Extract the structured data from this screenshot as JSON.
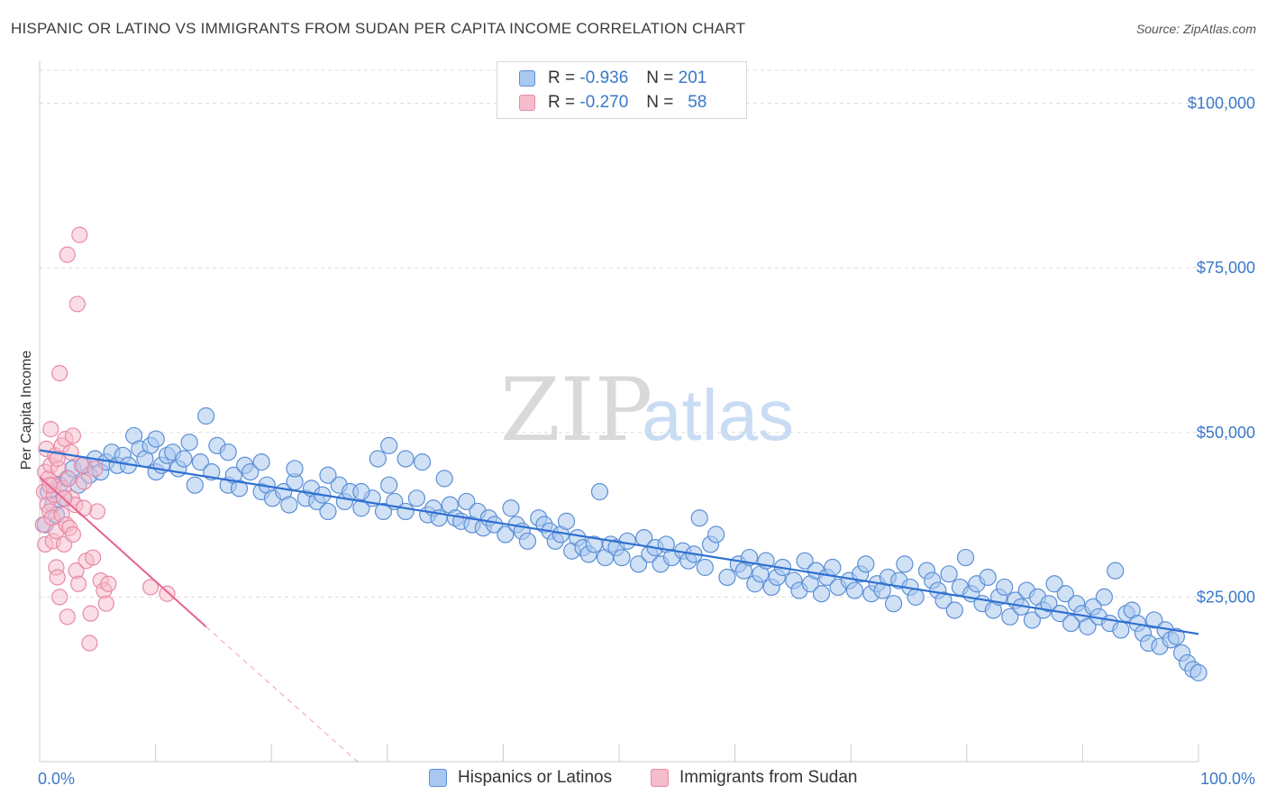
{
  "title": "HISPANIC OR LATINO VS IMMIGRANTS FROM SUDAN PER CAPITA INCOME CORRELATION CHART",
  "source": "Source: ZipAtlas.com",
  "watermark": {
    "zip": "ZIP",
    "atlas": "atlas"
  },
  "legend_top": [
    {
      "r_label": "R =",
      "r_value": "-0.936",
      "n_label": "N =",
      "n_value": "201"
    },
    {
      "r_label": "R =",
      "r_value": "-0.270",
      "n_label": "N =",
      "n_value": "58"
    }
  ],
  "colors": {
    "blue_fill": "#a9c8ef",
    "blue_stroke": "#5b8fd6",
    "blue_line": "#2e6fd0",
    "pink_fill": "#f5bccb",
    "pink_stroke": "#e88aa6",
    "pink_line": "#e8628d",
    "grid": "#dddddd",
    "tick_text": "#3b78c9"
  },
  "chart_data": {
    "type": "scatter",
    "title": "HISPANIC OR LATINO VS IMMIGRANTS FROM SUDAN PER CAPITA INCOME CORRELATION CHART",
    "xlabel": "",
    "ylabel": "Per Capita Income",
    "xlim": [
      0,
      100
    ],
    "ylim": [
      0,
      105000
    ],
    "x_tick_labels": [
      "0.0%",
      "100.0%"
    ],
    "y_ticks": [
      25000,
      50000,
      75000,
      100000
    ],
    "y_tick_labels": [
      "$25,000",
      "$50,000",
      "$75,000",
      "$100,000"
    ],
    "grid": true,
    "legend_position": "bottom",
    "series": [
      {
        "name": "Hispanics or Latinos",
        "r": -0.936,
        "n": 201,
        "trend": {
          "x": [
            0,
            100
          ],
          "y": [
            47300,
            19400
          ]
        },
        "points": [
          [
            0.5,
            36000
          ],
          [
            0.8,
            41000
          ],
          [
            1.2,
            39000
          ],
          [
            1.5,
            37500
          ],
          [
            1.8,
            42000
          ],
          [
            2.2,
            40000
          ],
          [
            2.5,
            43000
          ],
          [
            3.0,
            44500
          ],
          [
            3.5,
            42000
          ],
          [
            4.0,
            45000
          ],
          [
            4.5,
            43500
          ],
          [
            5.0,
            46000
          ],
          [
            5.5,
            44000
          ],
          [
            6.0,
            45500
          ],
          [
            6.5,
            47000
          ],
          [
            7.0,
            45000
          ],
          [
            7.5,
            46500
          ],
          [
            8.0,
            45000
          ],
          [
            8.5,
            49500
          ],
          [
            9.0,
            47500
          ],
          [
            9.5,
            46000
          ],
          [
            10.0,
            48000
          ],
          [
            10.5,
            44000
          ],
          [
            11.0,
            45000
          ],
          [
            11.5,
            46500
          ],
          [
            12.0,
            47000
          ],
          [
            12.5,
            44500
          ],
          [
            13.0,
            46000
          ],
          [
            14.0,
            42000
          ],
          [
            14.5,
            45500
          ],
          [
            15.0,
            52500
          ],
          [
            15.5,
            44000
          ],
          [
            16.0,
            48000
          ],
          [
            17.0,
            42000
          ],
          [
            17.5,
            43500
          ],
          [
            18.0,
            41500
          ],
          [
            18.5,
            45000
          ],
          [
            19.0,
            44000
          ],
          [
            20.0,
            41000
          ],
          [
            20.5,
            42000
          ],
          [
            21.0,
            40000
          ],
          [
            22.0,
            41000
          ],
          [
            22.5,
            39000
          ],
          [
            23.0,
            42500
          ],
          [
            24.0,
            40000
          ],
          [
            24.5,
            41500
          ],
          [
            25.0,
            39500
          ],
          [
            25.5,
            40500
          ],
          [
            26.0,
            38000
          ],
          [
            27.0,
            42000
          ],
          [
            27.5,
            39500
          ],
          [
            28.0,
            41000
          ],
          [
            29.0,
            38500
          ],
          [
            30.0,
            40000
          ],
          [
            30.5,
            46000
          ],
          [
            31.0,
            38000
          ],
          [
            31.5,
            42000
          ],
          [
            32.0,
            39500
          ],
          [
            33.0,
            38000
          ],
          [
            34.0,
            40000
          ],
          [
            35.0,
            37500
          ],
          [
            35.5,
            38500
          ],
          [
            36.0,
            37000
          ],
          [
            37.0,
            39000
          ],
          [
            37.5,
            37000
          ],
          [
            38.0,
            36500
          ],
          [
            38.5,
            39500
          ],
          [
            39.0,
            36000
          ],
          [
            39.5,
            38000
          ],
          [
            40.0,
            35500
          ],
          [
            40.5,
            37000
          ],
          [
            41.0,
            36000
          ],
          [
            42.0,
            34500
          ],
          [
            42.5,
            38500
          ],
          [
            43.0,
            36000
          ],
          [
            43.5,
            35000
          ],
          [
            44.0,
            33500
          ],
          [
            45.0,
            37000
          ],
          [
            45.5,
            36000
          ],
          [
            46.0,
            35000
          ],
          [
            46.5,
            33500
          ],
          [
            47.0,
            34500
          ],
          [
            47.5,
            36500
          ],
          [
            48.0,
            32000
          ],
          [
            48.5,
            34000
          ],
          [
            49.0,
            32500
          ],
          [
            49.5,
            31500
          ],
          [
            50.0,
            33000
          ],
          [
            50.5,
            41000
          ],
          [
            51.0,
            31000
          ],
          [
            51.5,
            33000
          ],
          [
            52.0,
            32500
          ],
          [
            52.5,
            31000
          ],
          [
            53.0,
            33500
          ],
          [
            54.0,
            30000
          ],
          [
            54.5,
            34000
          ],
          [
            55.0,
            31500
          ],
          [
            55.5,
            32500
          ],
          [
            56.0,
            30000
          ],
          [
            56.5,
            33000
          ],
          [
            57.0,
            31000
          ],
          [
            58.0,
            32000
          ],
          [
            58.5,
            30500
          ],
          [
            59.0,
            31500
          ],
          [
            59.5,
            37000
          ],
          [
            60.0,
            29500
          ],
          [
            60.5,
            33000
          ],
          [
            61.0,
            34500
          ],
          [
            62.0,
            28000
          ],
          [
            63.0,
            30000
          ],
          [
            63.5,
            29000
          ],
          [
            64.0,
            31000
          ],
          [
            64.5,
            27000
          ],
          [
            65.0,
            28500
          ],
          [
            65.5,
            30500
          ],
          [
            66.0,
            26500
          ],
          [
            66.5,
            28000
          ],
          [
            67.0,
            29500
          ],
          [
            68.0,
            27500
          ],
          [
            68.5,
            26000
          ],
          [
            69.0,
            30500
          ],
          [
            69.5,
            27000
          ],
          [
            70.0,
            29000
          ],
          [
            70.5,
            25500
          ],
          [
            71.0,
            28000
          ],
          [
            71.5,
            29500
          ],
          [
            72.0,
            26500
          ],
          [
            73.0,
            27500
          ],
          [
            73.5,
            26000
          ],
          [
            74.0,
            28500
          ],
          [
            74.5,
            30000
          ],
          [
            75.0,
            25500
          ],
          [
            75.5,
            27000
          ],
          [
            76.0,
            26000
          ],
          [
            76.5,
            28000
          ],
          [
            77.0,
            24000
          ],
          [
            77.5,
            27500
          ],
          [
            78.0,
            30000
          ],
          [
            78.5,
            26500
          ],
          [
            79.0,
            25000
          ],
          [
            80.0,
            29000
          ],
          [
            80.5,
            27500
          ],
          [
            81.0,
            26000
          ],
          [
            81.5,
            24500
          ],
          [
            82.0,
            28500
          ],
          [
            82.5,
            23000
          ],
          [
            83.0,
            26500
          ],
          [
            83.5,
            31000
          ],
          [
            84.0,
            25500
          ],
          [
            84.5,
            27000
          ],
          [
            85.0,
            24000
          ],
          [
            85.5,
            28000
          ],
          [
            86.0,
            23000
          ],
          [
            86.5,
            25000
          ],
          [
            87.0,
            26500
          ],
          [
            87.5,
            22000
          ],
          [
            88.0,
            24500
          ],
          [
            88.5,
            23500
          ],
          [
            89.0,
            26000
          ],
          [
            89.5,
            21500
          ],
          [
            90.0,
            25000
          ],
          [
            90.5,
            23000
          ],
          [
            91.0,
            24000
          ],
          [
            91.5,
            27000
          ],
          [
            92.0,
            22500
          ],
          [
            92.5,
            25500
          ],
          [
            93.0,
            21000
          ],
          [
            93.5,
            24000
          ],
          [
            94.0,
            22500
          ],
          [
            94.5,
            20500
          ],
          [
            95.0,
            23500
          ],
          [
            95.5,
            22000
          ],
          [
            96.0,
            25000
          ],
          [
            96.5,
            21000
          ],
          [
            97.0,
            29000
          ],
          [
            97.5,
            20000
          ],
          [
            98.0,
            22500
          ],
          [
            98.5,
            23000
          ],
          [
            99.0,
            21000
          ],
          [
            99.5,
            19500
          ],
          [
            100.0,
            18000
          ],
          [
            100.5,
            21500
          ],
          [
            101.0,
            17500
          ],
          [
            101.5,
            20000
          ],
          [
            102.0,
            18500
          ],
          [
            102.5,
            19000
          ],
          [
            103.0,
            16500
          ],
          [
            103.5,
            15000
          ],
          [
            104.0,
            14000
          ],
          [
            104.5,
            13500
          ],
          [
            20.0,
            45500
          ],
          [
            23.0,
            44500
          ],
          [
            29.0,
            41000
          ],
          [
            31.5,
            48000
          ],
          [
            33.0,
            46000
          ],
          [
            34.5,
            45500
          ],
          [
            36.5,
            43000
          ],
          [
            26.0,
            43500
          ],
          [
            17.0,
            47000
          ],
          [
            13.5,
            48500
          ],
          [
            10.5,
            49000
          ]
        ]
      },
      {
        "name": "Immigrants from Sudan",
        "r": -0.27,
        "n": 58,
        "trend": {
          "x": [
            0,
            15
          ],
          "y": [
            43200,
            20500
          ]
        },
        "trend_extension": {
          "x": [
            15,
            30
          ],
          "y": [
            20500,
            -2000
          ]
        },
        "points": [
          [
            0.3,
            36000
          ],
          [
            0.4,
            41000
          ],
          [
            0.5,
            44000
          ],
          [
            0.5,
            33000
          ],
          [
            0.6,
            47500
          ],
          [
            0.7,
            39000
          ],
          [
            0.8,
            43000
          ],
          [
            0.9,
            38000
          ],
          [
            1.0,
            45000
          ],
          [
            1.0,
            50500
          ],
          [
            1.1,
            37000
          ],
          [
            1.2,
            42000
          ],
          [
            1.2,
            33500
          ],
          [
            1.3,
            40500
          ],
          [
            1.4,
            46500
          ],
          [
            1.5,
            29500
          ],
          [
            1.5,
            35000
          ],
          [
            1.6,
            28000
          ],
          [
            1.7,
            44500
          ],
          [
            1.8,
            25000
          ],
          [
            1.8,
            59000
          ],
          [
            2.0,
            37500
          ],
          [
            2.0,
            48000
          ],
          [
            2.1,
            41500
          ],
          [
            2.2,
            33000
          ],
          [
            2.3,
            49000
          ],
          [
            2.4,
            36000
          ],
          [
            2.5,
            22000
          ],
          [
            2.5,
            77000
          ],
          [
            2.6,
            43000
          ],
          [
            2.7,
            35500
          ],
          [
            2.8,
            47000
          ],
          [
            2.9,
            40000
          ],
          [
            3.0,
            49500
          ],
          [
            3.0,
            34500
          ],
          [
            3.2,
            39000
          ],
          [
            3.3,
            29000
          ],
          [
            3.4,
            69500
          ],
          [
            3.5,
            27000
          ],
          [
            3.6,
            80000
          ],
          [
            3.8,
            45000
          ],
          [
            4.0,
            42500
          ],
          [
            4.2,
            30500
          ],
          [
            4.5,
            18000
          ],
          [
            4.6,
            22500
          ],
          [
            4.8,
            31000
          ],
          [
            5.0,
            44500
          ],
          [
            5.2,
            38000
          ],
          [
            5.5,
            27500
          ],
          [
            5.8,
            26000
          ],
          [
            6.0,
            24000
          ],
          [
            6.2,
            27000
          ],
          [
            0.9,
            42000
          ],
          [
            1.6,
            46000
          ],
          [
            2.2,
            40000
          ],
          [
            10.0,
            26500
          ],
          [
            11.5,
            25500
          ],
          [
            4.0,
            38500
          ]
        ]
      }
    ]
  },
  "legend_bottom": [
    "Hispanics or Latinos",
    "Immigrants from Sudan"
  ]
}
